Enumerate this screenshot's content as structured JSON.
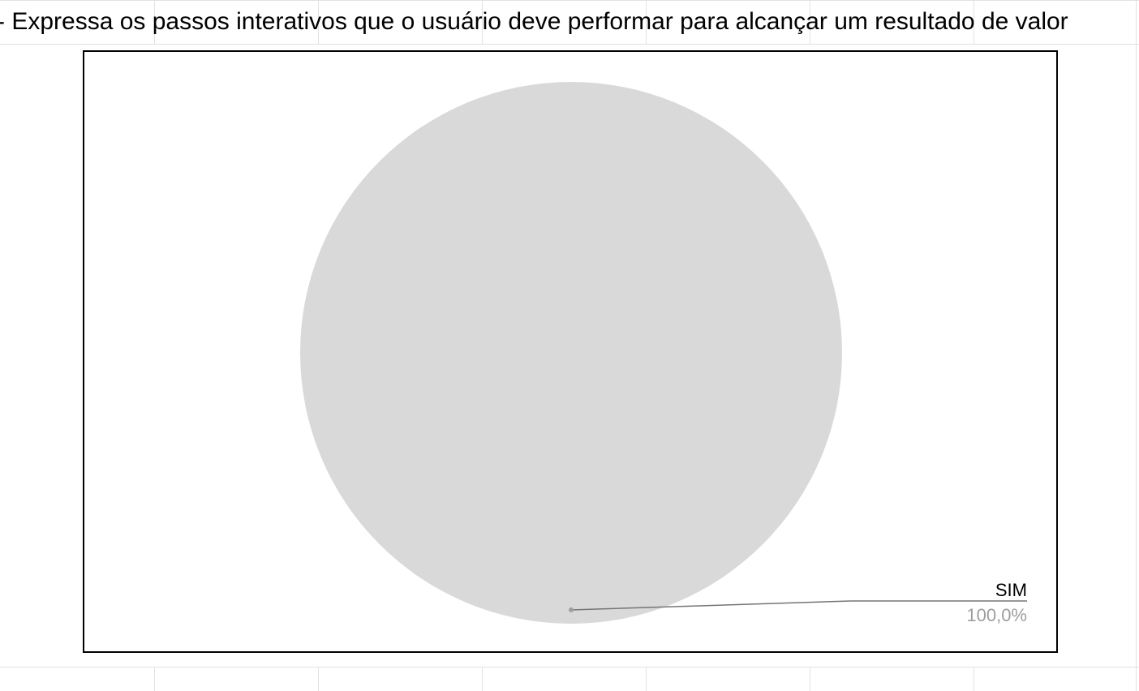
{
  "sheet": {
    "cell_text": "- Expressa os passos interativos que o usuário deve performar para alcançar um resultado de valor"
  },
  "colors": {
    "slice": "#d9d9d9",
    "leader_line": "#757575",
    "label_text": "#000000",
    "percent_text": "#9e9e9e",
    "gridline": "#e2e2e2"
  },
  "chart_data": {
    "type": "pie",
    "title": "",
    "categories": [
      "SIM"
    ],
    "values": [
      100
    ],
    "labels": [
      {
        "name": "SIM",
        "percent": "100,0%"
      }
    ],
    "legend": "none"
  }
}
